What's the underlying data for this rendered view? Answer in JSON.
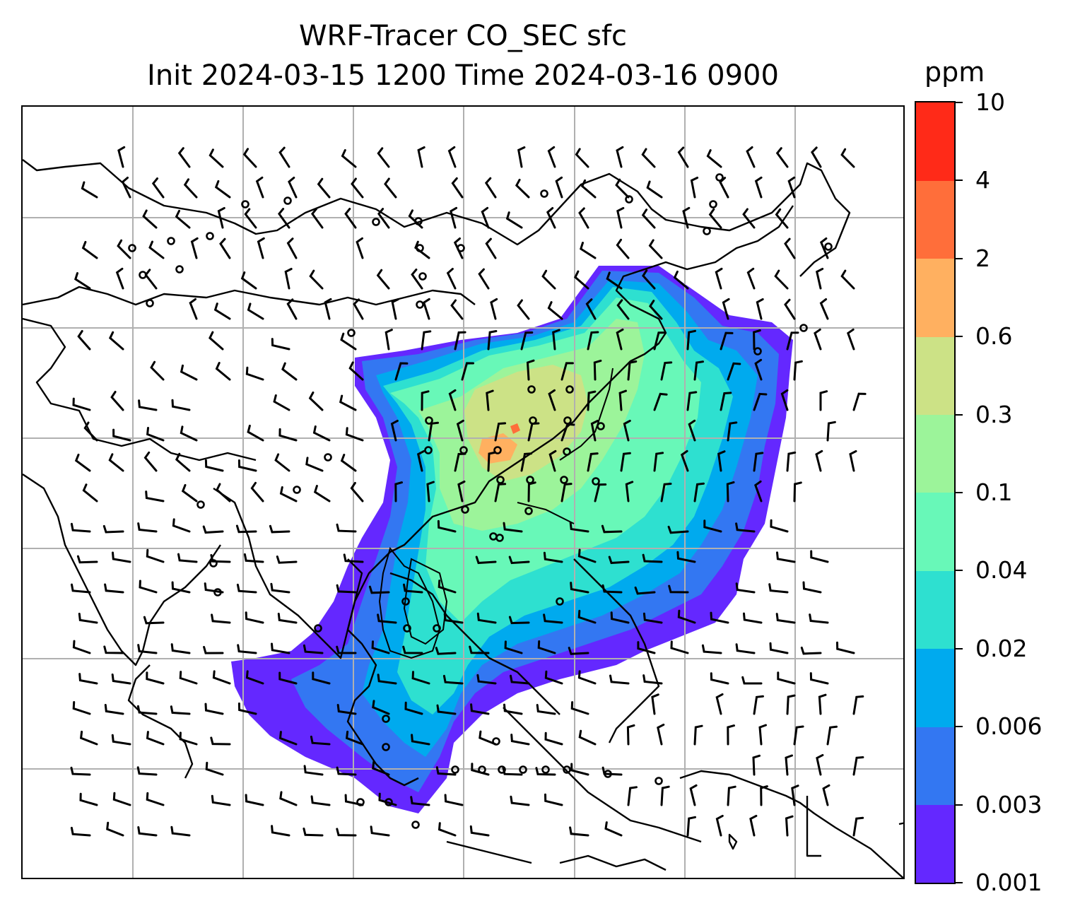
{
  "title": {
    "line1": "WRF-Tracer CO_SEC sfc",
    "line2": "Init 2024-03-15 1200 Time 2024-03-16 0900"
  },
  "colorbar": {
    "units": "ppm",
    "levels": [
      "0.001",
      "0.003",
      "0.006",
      "0.02",
      "0.04",
      "0.1",
      "0.3",
      "0.6",
      "2",
      "4",
      "10"
    ],
    "colors": [
      "#6428ff",
      "#3377f2",
      "#00aaee",
      "#2ee0d0",
      "#68f8b8",
      "#9cf49a",
      "#cce286",
      "#ffb060",
      "#ff6e3a",
      "#ff2a18"
    ]
  },
  "map": {
    "gridlines": true,
    "wind_barbs": true,
    "coastlines": true,
    "color_coast": "#000000",
    "color_grid": "#b0b0b0"
  }
}
